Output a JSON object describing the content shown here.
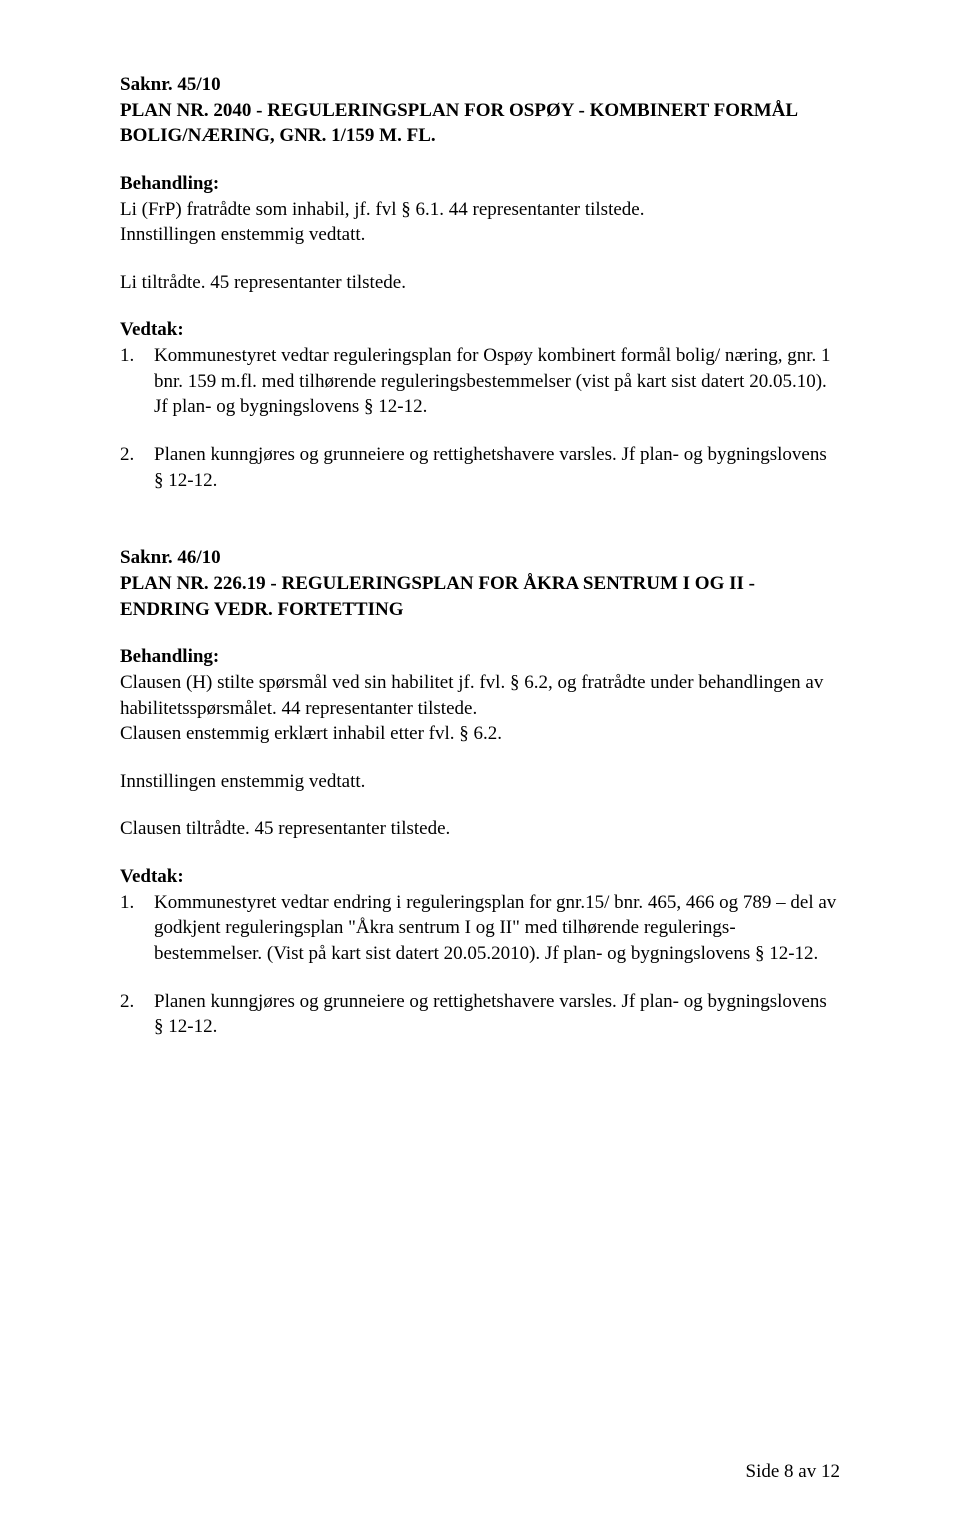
{
  "section1": {
    "saknr": "Saknr. 45/10",
    "title_line1": "PLAN NR. 2040 - REGULERINGSPLAN FOR OSPØY - KOMBINERT FORMÅL",
    "title_line2": "BOLIG/NÆRING, GNR. 1/159 M. FL.",
    "behandling_label": "Behandling:",
    "behandling_line1": "Li (FrP) fratrådte som inhabil, jf. fvl § 6.1.  44 representanter tilstede.",
    "behandling_line2": "Innstillingen enstemmig vedtatt.",
    "behandling_line3": "Li tiltrådte. 45 representanter tilstede.",
    "vedtak_label": "Vedtak:",
    "vedtak1_num": "1.",
    "vedtak1_text": "Kommunestyret vedtar reguleringsplan for Ospøy kombinert formål bolig/ næring, gnr. 1 bnr. 159 m.fl. med tilhørende reguleringsbestemmelser (vist på kart sist datert 20.05.10). Jf plan- og bygningslovens § 12-12.",
    "vedtak2_num": "2.",
    "vedtak2_text": "Planen kunngjøres og grunneiere og rettighetshavere varsles. Jf plan- og bygningslovens § 12-12."
  },
  "section2": {
    "saknr": "Saknr. 46/10",
    "title_line1": "PLAN NR. 226.19 - REGULERINGSPLAN FOR ÅKRA SENTRUM I OG II -",
    "title_line2": "ENDRING VEDR. FORTETTING",
    "behandling_label": "Behandling:",
    "behandling_line1": "Clausen  (H) stilte spørsmål ved sin habilitet jf. fvl. § 6.2, og fratrådte under behandlingen av habilitetsspørsmålet. 44 representanter tilstede.",
    "behandling_line2": "Clausen enstemmig erklært inhabil etter fvl. § 6.2.",
    "behandling_line3": "Innstillingen enstemmig vedtatt.",
    "behandling_line4": "Clausen tiltrådte. 45 representanter tilstede.",
    "vedtak_label": "Vedtak:",
    "vedtak1_num": "1.",
    "vedtak1_text": "Kommunestyret vedtar endring i reguleringsplan for gnr.15/ bnr. 465, 466 og 789 – del av godkjent reguleringsplan \"Åkra sentrum I og II\" med tilhørende regulerings-bestemmelser. (Vist på kart sist datert 20.05.2010). Jf plan- og bygningslovens § 12-12.",
    "vedtak2_num": "2.",
    "vedtak2_text": "Planen kunngjøres og grunneiere og rettighetshavere varsles. Jf plan- og bygningslovens § 12-12."
  },
  "footer": "Side 8 av 12",
  "colors": {
    "text": "#000000",
    "background": "#ffffff"
  },
  "typography": {
    "heading_fontsize": 19,
    "body_fontsize": 19,
    "body_font": "Book Antiqua / Palatino",
    "heading_font": "Times New Roman",
    "line_height": 1.35
  }
}
